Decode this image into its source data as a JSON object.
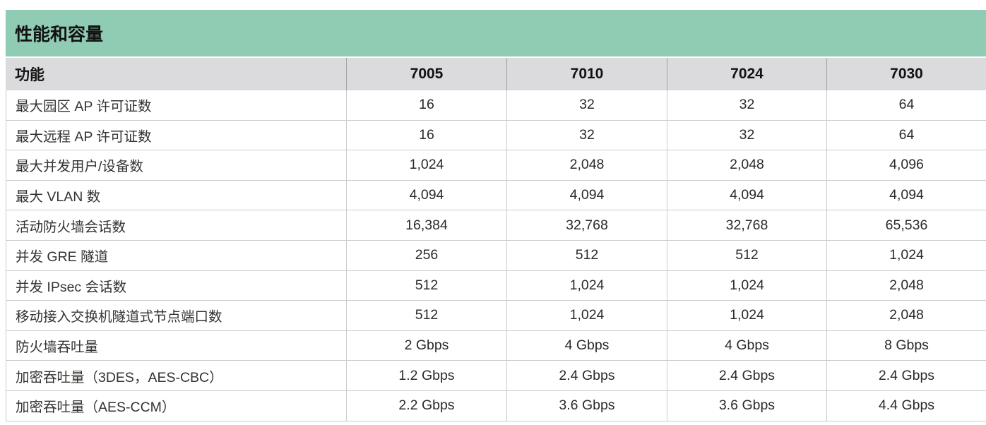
{
  "table": {
    "title": "性能和容量",
    "columns": [
      "功能",
      "7005",
      "7010",
      "7024",
      "7030"
    ],
    "rows": [
      {
        "label": "最大园区 AP 许可证数",
        "values": [
          "16",
          "32",
          "32",
          "64"
        ]
      },
      {
        "label": "最大远程 AP 许可证数",
        "values": [
          "16",
          "32",
          "32",
          "64"
        ]
      },
      {
        "label": "最大并发用户/设备数",
        "values": [
          "1,024",
          "2,048",
          "2,048",
          "4,096"
        ]
      },
      {
        "label": "最大 VLAN 数",
        "values": [
          "4,094",
          "4,094",
          "4,094",
          "4,094"
        ]
      },
      {
        "label": "活动防火墙会话数",
        "values": [
          "16,384",
          "32,768",
          "32,768",
          "65,536"
        ]
      },
      {
        "label": "并发 GRE 隧道",
        "values": [
          "256",
          "512",
          "512",
          "1,024"
        ]
      },
      {
        "label": "并发 IPsec 会话数",
        "values": [
          "512",
          "1,024",
          "1,024",
          "2,048"
        ]
      },
      {
        "label": "移动接入交换机隧道式节点端口数",
        "values": [
          "512",
          "1,024",
          "1,024",
          "2,048"
        ]
      },
      {
        "label": "防火墙吞吐量",
        "values": [
          "2 Gbps",
          "4 Gbps",
          "4 Gbps",
          "8 Gbps"
        ]
      },
      {
        "label": "加密吞吐量（3DES，AES-CBC）",
        "values": [
          "1.2 Gbps",
          "2.4 Gbps",
          "2.4 Gbps",
          "2.4 Gbps"
        ]
      },
      {
        "label": "加密吞吐量（AES-CCM）",
        "values": [
          "2.2 Gbps",
          "3.6 Gbps",
          "3.6 Gbps",
          "4.4 Gbps"
        ]
      }
    ],
    "colors": {
      "title_bg": "#90cbb4",
      "header_bg": "#dbdbdd",
      "border": "#cbcbcb",
      "header_divider": "#9fa1a3",
      "text": "#1d1d1b"
    }
  }
}
